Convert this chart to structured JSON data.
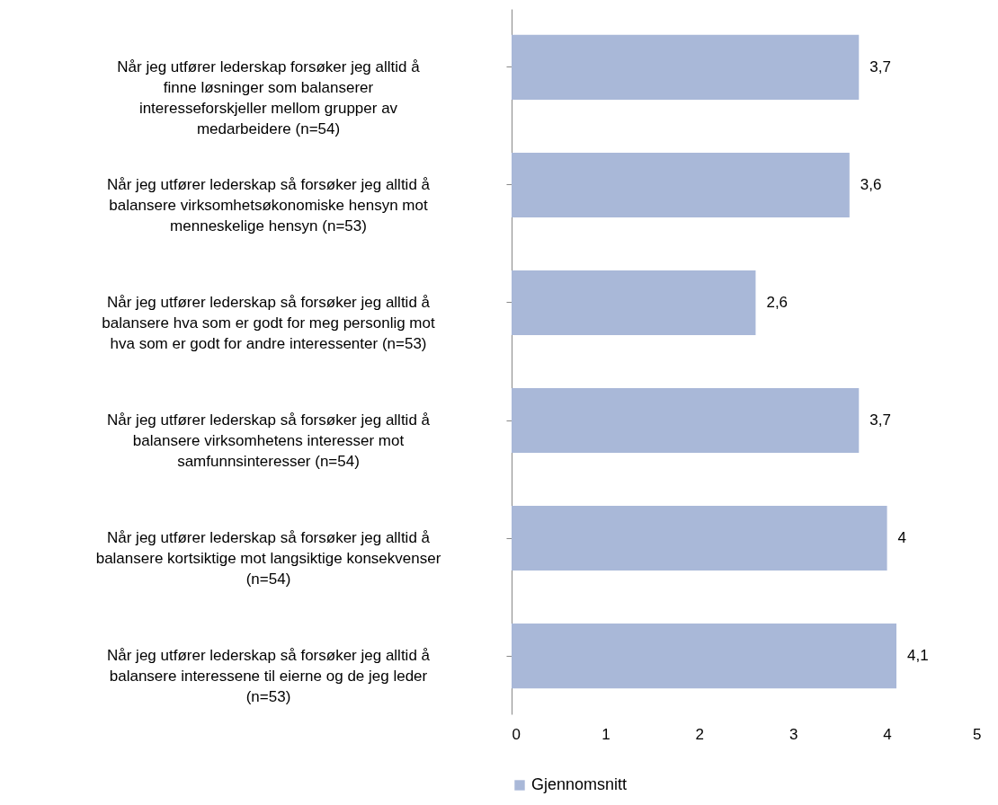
{
  "chart_data": {
    "type": "bar",
    "orientation": "horizontal",
    "categories": [
      "Når jeg utfører lederskap forsøker jeg alltid å finne løsninger som balanserer interesseforskjeller mellom grupper av medarbeidere (n=54)",
      "Når jeg utfører lederskap så forsøker jeg alltid å balansere virksomhetsøkonomiske hensyn mot menneskelige hensyn (n=53)",
      "Når jeg utfører lederskap så forsøker jeg alltid å balansere hva som er godt for meg personlig mot hva som er godt for andre interessenter (n=53)",
      "Når jeg utfører lederskap så forsøker jeg alltid å balansere virksomhetens interesser mot samfunnsinteresser (n=54)",
      "Når jeg utfører lederskap så forsøker jeg alltid å balansere kortsiktige mot langsiktige konsekvenser (n=54)",
      "Når jeg utfører lederskap så forsøker jeg alltid å balansere interessene til eierne og de jeg leder (n=53)"
    ],
    "series": [
      {
        "name": "Gjennomsnitt",
        "color": "#a9b8d8",
        "values": [
          3.7,
          3.6,
          2.6,
          3.7,
          4,
          4.1
        ],
        "value_labels": [
          "3,7",
          "3,6",
          "2,6",
          "3,7",
          "4",
          "4,1"
        ]
      }
    ],
    "xlim": [
      0,
      5
    ],
    "xticks": [
      0,
      1,
      2,
      3,
      4,
      5
    ],
    "legend": "bottom"
  }
}
